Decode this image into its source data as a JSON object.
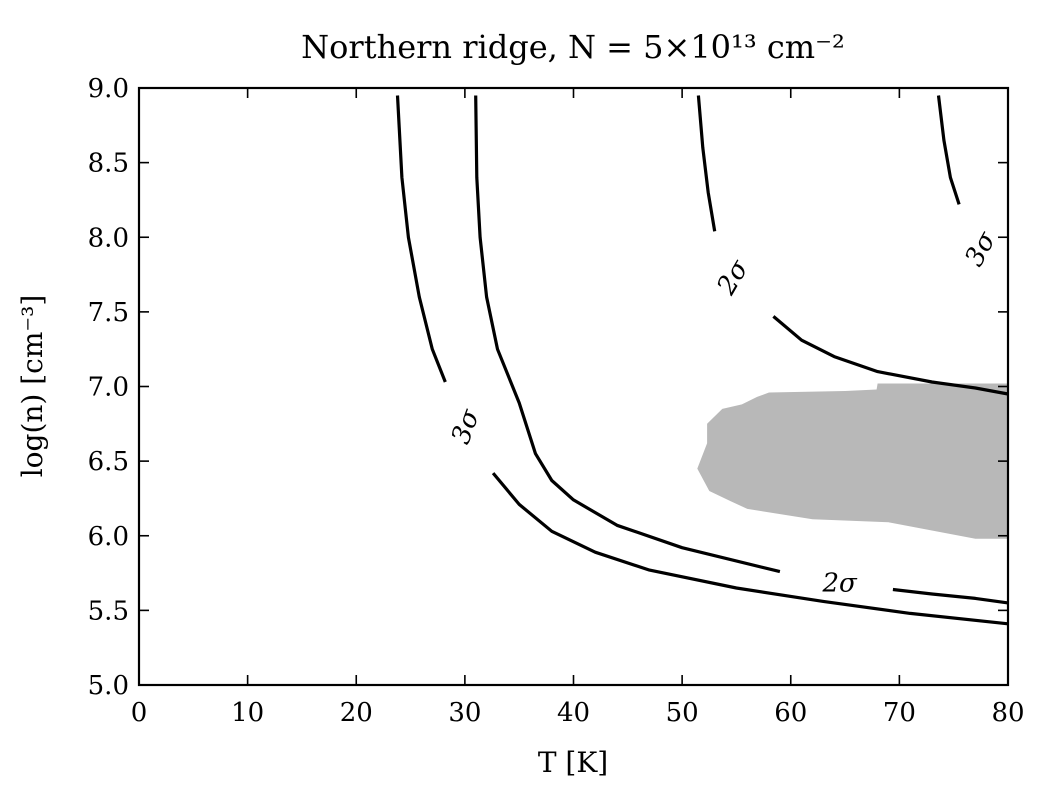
{
  "chart_data": {
    "type": "contour",
    "title": "Northern ridge, N = 5×10¹³ cm⁻²",
    "xlabel": "T [K]",
    "ylabel": "log(n) [cm⁻³]",
    "xlim": [
      0,
      80
    ],
    "ylim": [
      5.0,
      9.0
    ],
    "xticks": [
      0,
      10,
      20,
      30,
      40,
      50,
      60,
      70,
      80
    ],
    "yticks": [
      5.0,
      5.5,
      6.0,
      6.5,
      7.0,
      7.5,
      8.0,
      8.5,
      9.0
    ],
    "xtick_labels": [
      "0",
      "10",
      "20",
      "30",
      "40",
      "50",
      "60",
      "70",
      "80"
    ],
    "ytick_labels": [
      "5.0",
      "5.5",
      "6.0",
      "6.5",
      "7.0",
      "7.5",
      "8.0",
      "8.5",
      "9.0"
    ],
    "grid": false,
    "best_fit_region": {
      "color": "#b8b8b8",
      "polygon": [
        [
          51.4,
          6.45
        ],
        [
          52.3,
          6.62
        ],
        [
          52.3,
          6.75
        ],
        [
          53.7,
          6.85
        ],
        [
          55.5,
          6.88
        ],
        [
          56.9,
          6.93
        ],
        [
          58.0,
          6.96
        ],
        [
          65.0,
          6.97
        ],
        [
          67.9,
          6.98
        ],
        [
          68.0,
          7.02
        ],
        [
          80.0,
          7.02
        ],
        [
          80.0,
          5.98
        ],
        [
          77.0,
          5.98
        ],
        [
          69.0,
          6.09
        ],
        [
          62.0,
          6.11
        ],
        [
          56.0,
          6.18
        ],
        [
          54.5,
          6.23
        ],
        [
          52.5,
          6.3
        ],
        [
          51.4,
          6.45
        ]
      ]
    },
    "contours": [
      {
        "level": "3σ",
        "segments": [
          [
            [
              23.8,
              8.95
            ],
            [
              24.2,
              8.4
            ],
            [
              24.8,
              8.0
            ],
            [
              25.8,
              7.6
            ],
            [
              27.0,
              7.25
            ],
            [
              28.2,
              7.03
            ]
          ],
          [
            [
              32.6,
              6.42
            ],
            [
              35.0,
              6.21
            ],
            [
              38.0,
              6.03
            ],
            [
              42.0,
              5.89
            ],
            [
              47.0,
              5.77
            ],
            [
              55.0,
              5.65
            ],
            [
              63.0,
              5.56
            ],
            [
              71.0,
              5.48
            ],
            [
              80.0,
              5.41
            ]
          ]
        ],
        "labels": [
          {
            "text": "3σ",
            "x": 30.1,
            "y": 6.73,
            "rotation": -70
          }
        ]
      },
      {
        "level": "2σ",
        "segments": [
          [
            [
              31.0,
              8.95
            ],
            [
              31.1,
              8.4
            ],
            [
              31.4,
              8.0
            ],
            [
              32.0,
              7.6
            ],
            [
              33.0,
              7.25
            ],
            [
              35.0,
              6.89
            ],
            [
              36.5,
              6.55
            ],
            [
              38.0,
              6.37
            ],
            [
              40.0,
              6.24
            ],
            [
              44.0,
              6.07
            ],
            [
              50.0,
              5.92
            ],
            [
              59.0,
              5.76
            ]
          ],
          [
            [
              69.4,
              5.64
            ],
            [
              73.0,
              5.61
            ],
            [
              77.0,
              5.58
            ],
            [
              80.0,
              5.55
            ]
          ]
        ],
        "labels": [
          {
            "text": "2σ",
            "x": 64.5,
            "y": 5.68,
            "rotation": 0
          }
        ]
      },
      {
        "level": "2σ",
        "segments": [
          [
            [
              51.5,
              8.95
            ],
            [
              51.9,
              8.6
            ],
            [
              52.4,
              8.3
            ],
            [
              53.0,
              8.04
            ]
          ],
          [
            [
              58.4,
              7.47
            ],
            [
              61.0,
              7.31
            ],
            [
              64.0,
              7.2
            ],
            [
              68.0,
              7.1
            ],
            [
              73.0,
              7.03
            ],
            [
              77.0,
              6.99
            ],
            [
              80.0,
              6.95
            ]
          ]
        ],
        "labels": [
          {
            "text": "2σ",
            "x": 54.7,
            "y": 7.73,
            "rotation": -60
          }
        ]
      },
      {
        "level": "3σ",
        "segments": [
          [
            [
              73.6,
              8.95
            ],
            [
              74.1,
              8.65
            ],
            [
              74.7,
              8.4
            ],
            [
              75.5,
              8.22
            ]
          ]
        ],
        "labels": [
          {
            "text": "3σ",
            "x": 77.5,
            "y": 7.92,
            "rotation": -62
          }
        ]
      }
    ]
  }
}
